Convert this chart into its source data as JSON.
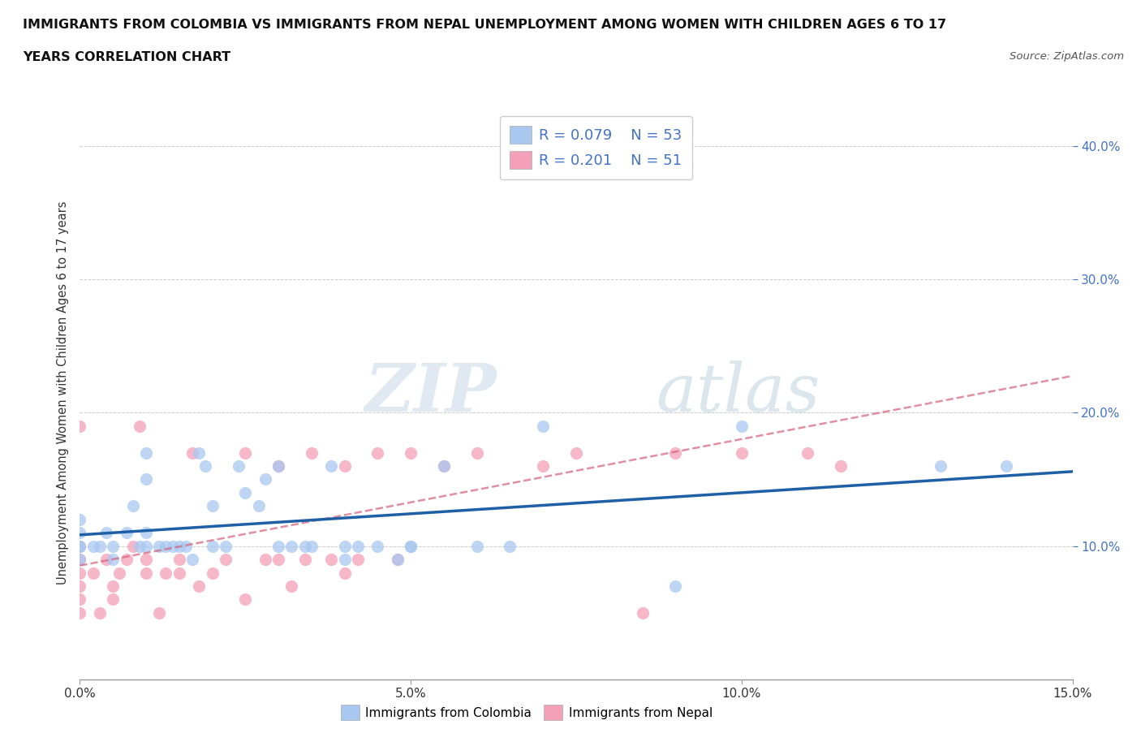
{
  "title_line1": "IMMIGRANTS FROM COLOMBIA VS IMMIGRANTS FROM NEPAL UNEMPLOYMENT AMONG WOMEN WITH CHILDREN AGES 6 TO 17",
  "title_line2": "YEARS CORRELATION CHART",
  "source": "Source: ZipAtlas.com",
  "ylabel": "Unemployment Among Women with Children Ages 6 to 17 years",
  "xlim": [
    0.0,
    0.15
  ],
  "ylim": [
    0.0,
    0.43
  ],
  "xticks": [
    0.0,
    0.05,
    0.1,
    0.15
  ],
  "xticklabels": [
    "0.0%",
    "5.0%",
    "10.0%",
    "15.0%"
  ],
  "yticks_right": [
    0.1,
    0.2,
    0.3,
    0.4
  ],
  "yticklabels_right": [
    "10.0%",
    "20.0%",
    "30.0%",
    "40.0%"
  ],
  "colombia_color": "#a8c8f0",
  "nepal_color": "#f4a0b8",
  "trend_colombia_color": "#1f5fa6",
  "trend_nepal_color": "#d4607a",
  "colombia_R": 0.079,
  "colombia_N": 53,
  "nepal_R": 0.201,
  "nepal_N": 51,
  "legend_text_color": "#4472c4",
  "watermark_zip": "ZIP",
  "watermark_atlas": "atlas",
  "background_color": "#ffffff",
  "grid_color": "#cccccc",
  "colombia_x": [
    0.0,
    0.0,
    0.0,
    0.0,
    0.0,
    0.002,
    0.003,
    0.004,
    0.005,
    0.005,
    0.007,
    0.008,
    0.009,
    0.01,
    0.01,
    0.01,
    0.01,
    0.012,
    0.013,
    0.014,
    0.015,
    0.016,
    0.017,
    0.018,
    0.019,
    0.02,
    0.02,
    0.022,
    0.024,
    0.025,
    0.027,
    0.028,
    0.03,
    0.03,
    0.032,
    0.034,
    0.035,
    0.038,
    0.04,
    0.04,
    0.042,
    0.045,
    0.048,
    0.05,
    0.05,
    0.055,
    0.06,
    0.065,
    0.07,
    0.09,
    0.1,
    0.13,
    0.14
  ],
  "colombia_y": [
    0.1,
    0.11,
    0.09,
    0.12,
    0.1,
    0.1,
    0.1,
    0.11,
    0.1,
    0.09,
    0.11,
    0.13,
    0.1,
    0.1,
    0.11,
    0.15,
    0.17,
    0.1,
    0.1,
    0.1,
    0.1,
    0.1,
    0.09,
    0.17,
    0.16,
    0.1,
    0.13,
    0.1,
    0.16,
    0.14,
    0.13,
    0.15,
    0.16,
    0.1,
    0.1,
    0.1,
    0.1,
    0.16,
    0.1,
    0.09,
    0.1,
    0.1,
    0.09,
    0.1,
    0.1,
    0.16,
    0.1,
    0.1,
    0.19,
    0.07,
    0.19,
    0.16,
    0.16
  ],
  "nepal_x": [
    0.0,
    0.0,
    0.0,
    0.0,
    0.0,
    0.0,
    0.0,
    0.002,
    0.003,
    0.004,
    0.005,
    0.005,
    0.006,
    0.007,
    0.008,
    0.009,
    0.01,
    0.01,
    0.012,
    0.013,
    0.015,
    0.015,
    0.017,
    0.018,
    0.02,
    0.022,
    0.025,
    0.025,
    0.028,
    0.03,
    0.03,
    0.032,
    0.034,
    0.035,
    0.038,
    0.04,
    0.04,
    0.042,
    0.045,
    0.048,
    0.05,
    0.055,
    0.06,
    0.065,
    0.07,
    0.075,
    0.085,
    0.09,
    0.1,
    0.11,
    0.115
  ],
  "nepal_y": [
    0.05,
    0.06,
    0.07,
    0.08,
    0.09,
    0.1,
    0.19,
    0.08,
    0.05,
    0.09,
    0.06,
    0.07,
    0.08,
    0.09,
    0.1,
    0.19,
    0.08,
    0.09,
    0.05,
    0.08,
    0.08,
    0.09,
    0.17,
    0.07,
    0.08,
    0.09,
    0.06,
    0.17,
    0.09,
    0.09,
    0.16,
    0.07,
    0.09,
    0.17,
    0.09,
    0.08,
    0.16,
    0.09,
    0.17,
    0.09,
    0.17,
    0.16,
    0.17,
    0.38,
    0.16,
    0.17,
    0.05,
    0.17,
    0.17,
    0.17,
    0.16
  ]
}
